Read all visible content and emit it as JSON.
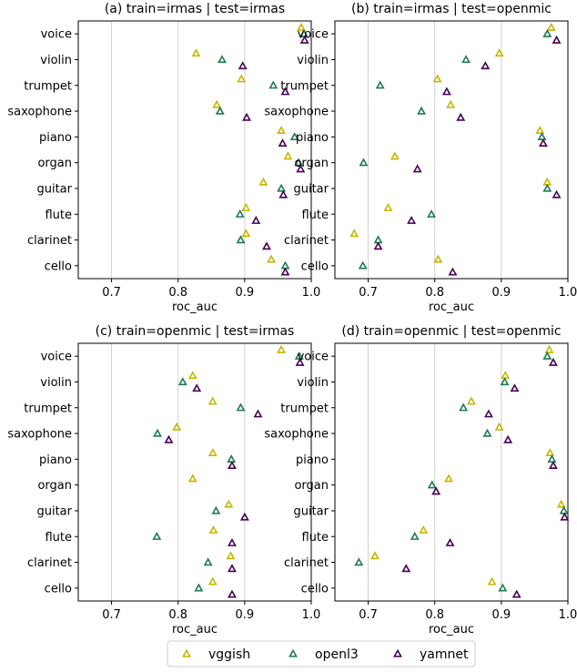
{
  "legend": {
    "entries": [
      {
        "name": "vggish",
        "color": "#fde725",
        "edge": "#c8b600"
      },
      {
        "name": "openl3",
        "color": "#35b779",
        "edge": "#1f7a50"
      },
      {
        "name": "yamnet",
        "color": "#440154",
        "edge": "#440154"
      }
    ]
  },
  "chart_data": [
    {
      "type": "scatter",
      "title": "(a) train=irmas | test=irmas",
      "xlabel": "roc_auc",
      "xlim": [
        0.65,
        1.0
      ],
      "xticks": [
        "0.7",
        "0.8",
        "0.9",
        "1.0"
      ],
      "grid": true,
      "marker": "triangle-hollow",
      "categories": [
        "voice",
        "violin",
        "trumpet",
        "saxophone",
        "piano",
        "organ",
        "guitar",
        "flute",
        "clarinet",
        "cello"
      ],
      "series": [
        {
          "name": "vggish",
          "values": [
            0.985,
            0.827,
            0.895,
            0.858,
            0.955,
            0.965,
            0.928,
            0.902,
            0.902,
            0.94
          ]
        },
        {
          "name": "openl3",
          "values": [
            0.989,
            0.866,
            0.943,
            0.863,
            0.975,
            0.981,
            0.955,
            0.893,
            0.894,
            0.961
          ]
        },
        {
          "name": "yamnet",
          "values": [
            0.99,
            0.897,
            0.961,
            0.903,
            0.957,
            0.984,
            0.958,
            0.917,
            0.933,
            0.961
          ]
        }
      ]
    },
    {
      "type": "scatter",
      "title": "(b) train=irmas | test=openmic",
      "xlabel": "roc_auc",
      "xlim": [
        0.65,
        1.0
      ],
      "xticks": [
        "0.7",
        "0.8",
        "0.9",
        "1.0"
      ],
      "grid": true,
      "marker": "triangle-hollow",
      "categories": [
        "voice",
        "violin",
        "trumpet",
        "saxophone",
        "piano",
        "organ",
        "guitar",
        "flute",
        "clarinet",
        "cello"
      ],
      "series": [
        {
          "name": "vggish",
          "values": [
            0.975,
            0.897,
            0.804,
            0.824,
            0.958,
            0.74,
            0.969,
            0.73,
            0.679,
            0.805
          ]
        },
        {
          "name": "openl3",
          "values": [
            0.969,
            0.847,
            0.718,
            0.78,
            0.961,
            0.693,
            0.969,
            0.795,
            0.715,
            0.692
          ]
        },
        {
          "name": "yamnet",
          "values": [
            0.983,
            0.876,
            0.818,
            0.839,
            0.963,
            0.774,
            0.983,
            0.765,
            0.715,
            0.827
          ]
        }
      ]
    },
    {
      "type": "scatter",
      "title": "(c) train=openmic | test=irmas",
      "xlabel": "roc_auc",
      "xlim": [
        0.65,
        1.0
      ],
      "xticks": [
        "0.7",
        "0.8",
        "0.9",
        "1.0"
      ],
      "grid": true,
      "marker": "triangle-hollow",
      "categories": [
        "voice",
        "violin",
        "trumpet",
        "saxophone",
        "piano",
        "organ",
        "guitar",
        "flute",
        "clarinet",
        "cello"
      ],
      "series": [
        {
          "name": "vggish",
          "values": [
            0.955,
            0.822,
            0.852,
            0.798,
            0.852,
            0.822,
            0.876,
            0.853,
            0.879,
            0.852
          ]
        },
        {
          "name": "openl3",
          "values": [
            0.982,
            0.807,
            0.894,
            0.769,
            0.88,
            null,
            0.857,
            0.768,
            0.845,
            0.831
          ]
        },
        {
          "name": "yamnet",
          "values": [
            0.983,
            0.828,
            0.92,
            0.786,
            0.881,
            null,
            0.9,
            0.881,
            0.881,
            0.881
          ]
        }
      ]
    },
    {
      "type": "scatter",
      "title": "(d) train=openmic | test=openmic",
      "xlabel": "roc_auc",
      "xlim": [
        0.65,
        1.0
      ],
      "xticks": [
        "0.7",
        "0.8",
        "0.9",
        "1.0"
      ],
      "grid": true,
      "marker": "triangle-hollow",
      "categories": [
        "voice",
        "violin",
        "trumpet",
        "saxophone",
        "piano",
        "organ",
        "guitar",
        "flute",
        "clarinet",
        "cello"
      ],
      "series": [
        {
          "name": "vggish",
          "values": [
            0.972,
            0.906,
            0.855,
            0.897,
            0.973,
            0.821,
            0.99,
            0.783,
            0.71,
            0.886
          ]
        },
        {
          "name": "openl3",
          "values": [
            0.969,
            0.905,
            0.843,
            0.879,
            0.976,
            0.796,
            0.994,
            0.77,
            0.686,
            0.902
          ]
        },
        {
          "name": "yamnet",
          "values": [
            0.978,
            0.92,
            0.881,
            0.91,
            0.978,
            0.802,
            0.995,
            0.823,
            0.757,
            0.923
          ]
        }
      ]
    }
  ]
}
